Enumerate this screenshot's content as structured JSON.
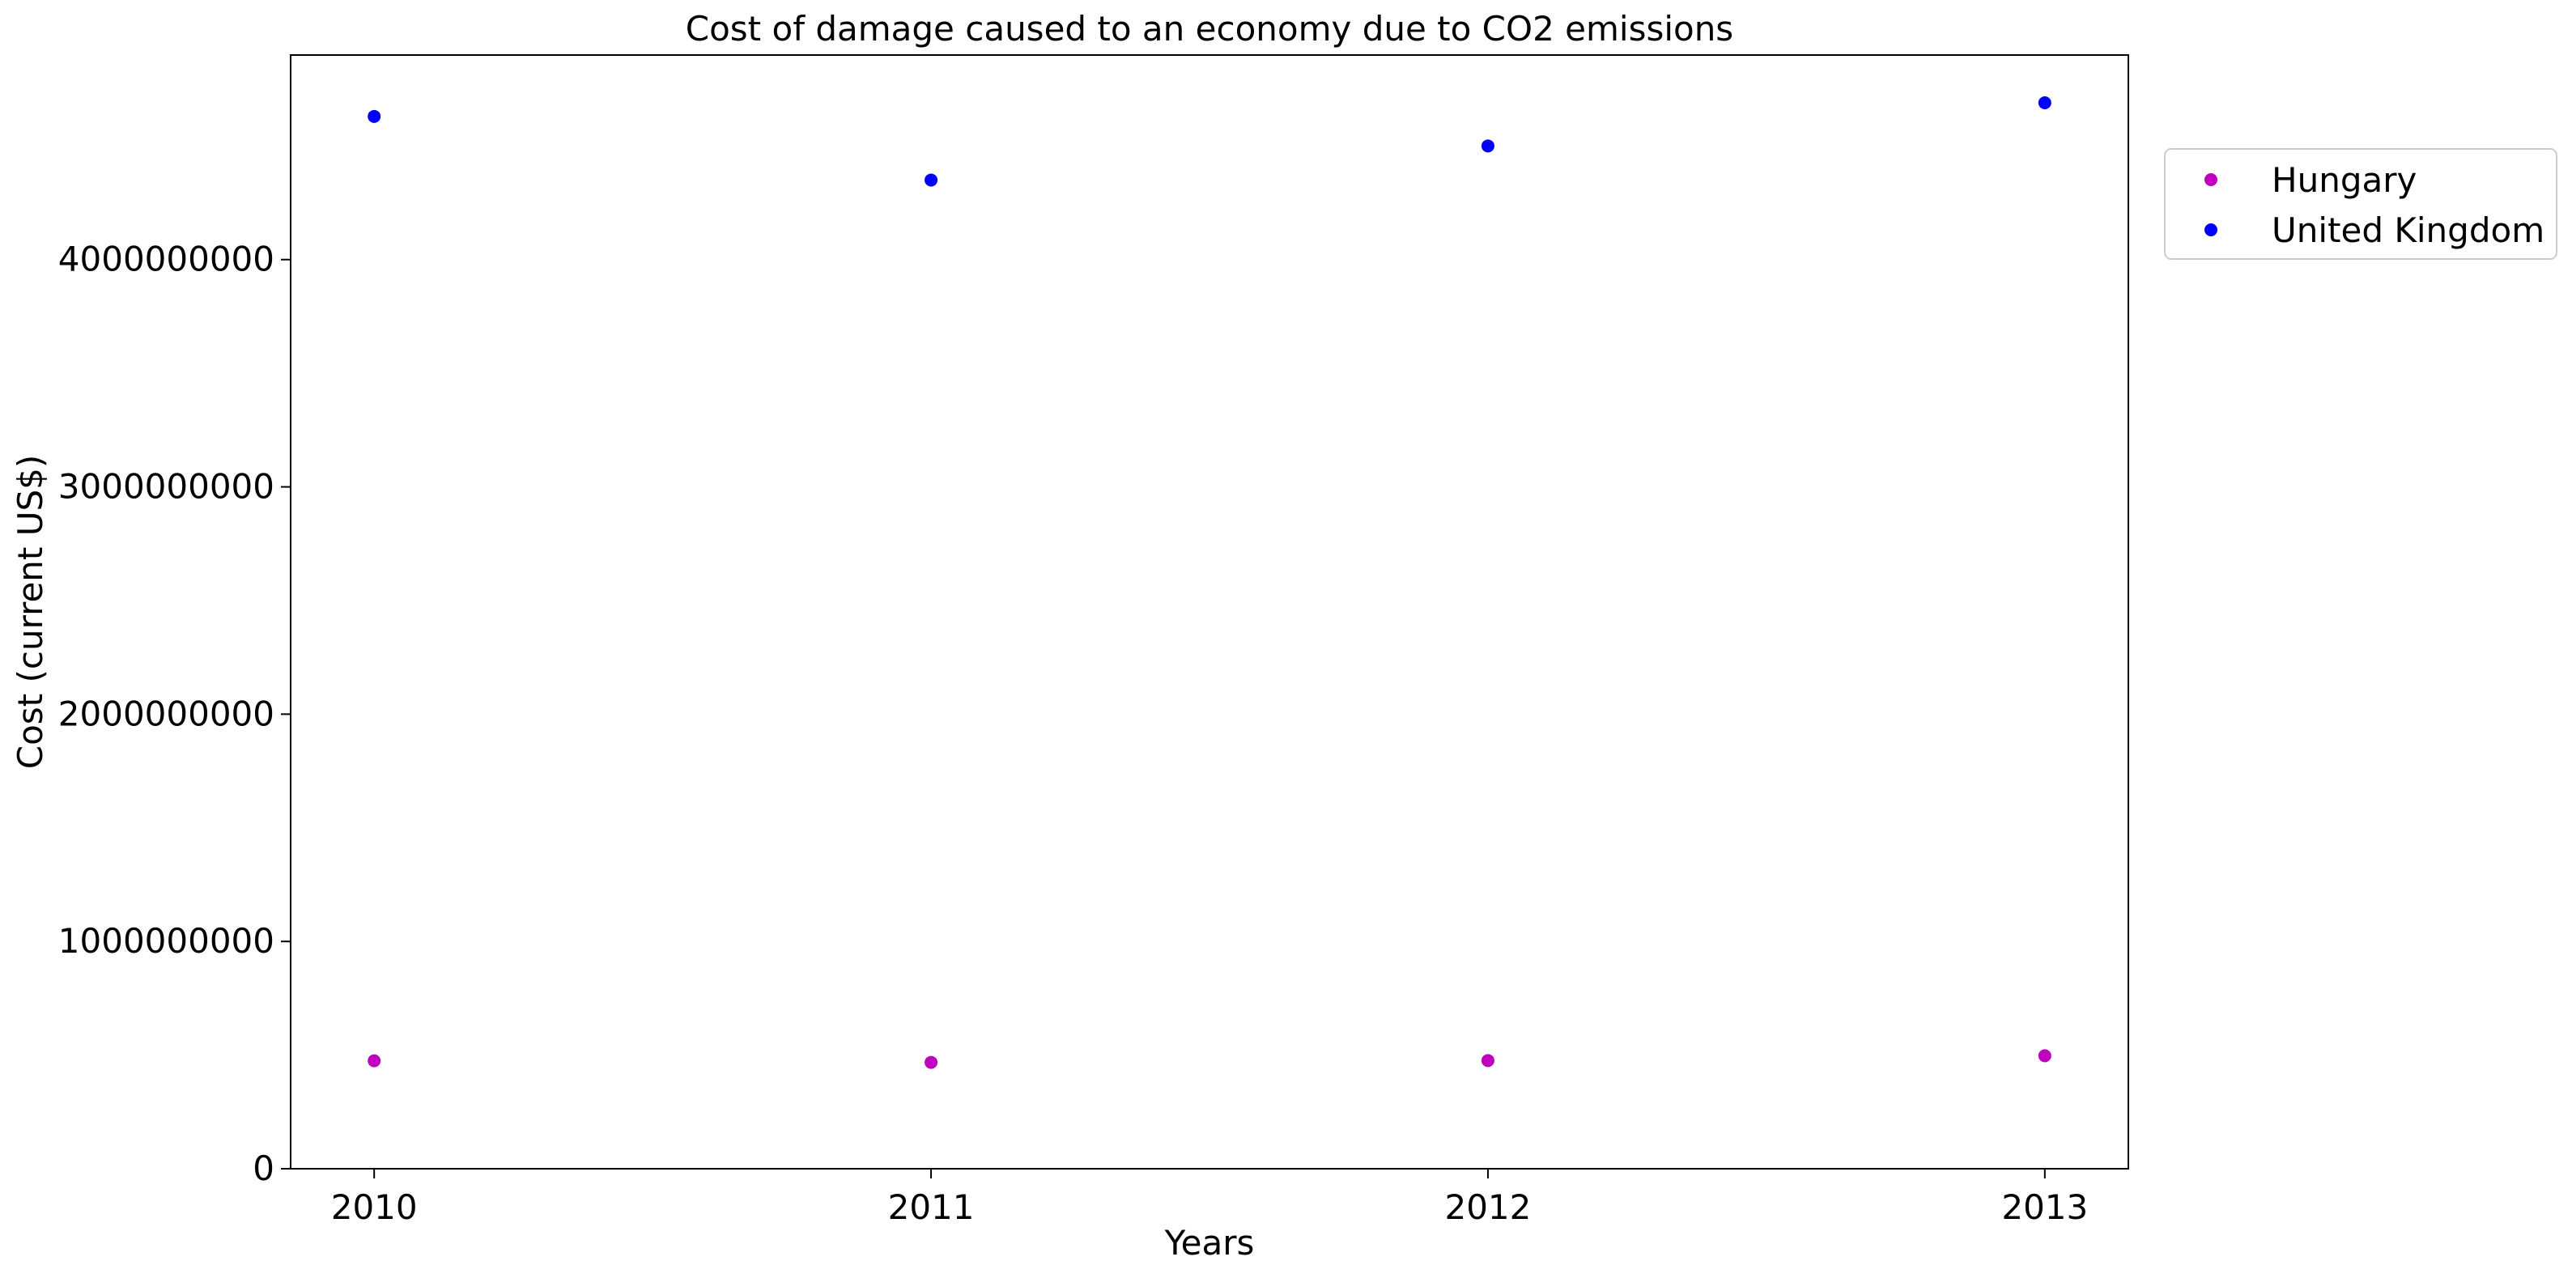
{
  "chart_data": {
    "type": "scatter",
    "title": "Cost of damage caused to an economy due to CO2 emissions",
    "xlabel": "Years",
    "ylabel": "Cost (current US$)",
    "x": [
      2010,
      2011,
      2012,
      2013
    ],
    "x_tick_labels": [
      "2010",
      "2011",
      "2012",
      "2013"
    ],
    "y_ticks": [
      0,
      1000000000,
      2000000000,
      3000000000,
      4000000000
    ],
    "y_tick_labels": [
      "0",
      "1000000000",
      "2000000000",
      "3000000000",
      "4000000000"
    ],
    "xlim": [
      2009.85,
      2013.15
    ],
    "ylim": [
      0,
      4900000000
    ],
    "grid": false,
    "legend_position": "outside right, top",
    "series": [
      {
        "name": "Hungary",
        "color": "#bf00bf",
        "values": [
          475000000,
          468000000,
          476000000,
          497000000
        ]
      },
      {
        "name": "United Kingdom",
        "color": "#0000ff",
        "values": [
          4630000000,
          4350000000,
          4500000000,
          4690000000
        ]
      }
    ]
  }
}
